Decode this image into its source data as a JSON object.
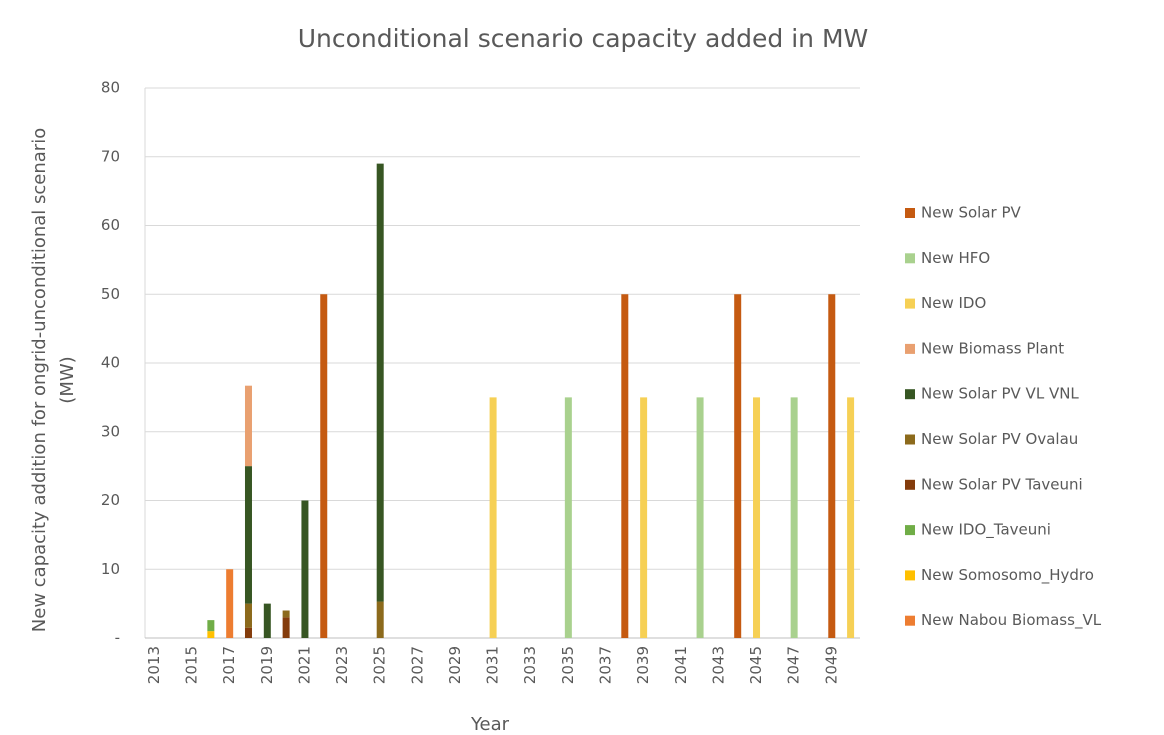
{
  "chart_data": {
    "type": "stacked_bar",
    "title": "Unconditional scenario capacity added in MW",
    "x_label": "Year",
    "y_label": [
      "New capacity addition for ongrid-unconditional scenario",
      "(MW)"
    ],
    "categories": [
      "2013",
      null,
      "2015",
      null,
      "2017",
      null,
      "2019",
      null,
      "2021",
      null,
      "2023",
      null,
      "2025",
      null,
      "2027",
      null,
      "2029",
      null,
      "2031",
      null,
      "2033",
      null,
      "2035",
      null,
      "2037",
      null,
      "2039",
      null,
      "2041",
      null,
      "2043",
      null,
      "2045",
      null,
      "2047",
      null,
      "2049",
      null
    ],
    "ylim": [
      0,
      80
    ],
    "yticks": [
      {
        "value": 0,
        "label": "-"
      },
      10,
      20,
      30,
      40,
      50,
      60,
      70,
      80
    ],
    "grid": true,
    "legend": "right",
    "series": [
      {
        "name": "New Solar PV",
        "color": "#c55a11",
        "values": [
          null,
          null,
          null,
          null,
          null,
          null,
          null,
          null,
          null,
          50,
          null,
          null,
          null,
          null,
          null,
          null,
          null,
          null,
          null,
          null,
          null,
          null,
          null,
          null,
          null,
          50,
          null,
          null,
          null,
          null,
          null,
          50,
          null,
          null,
          null,
          null,
          50,
          null
        ]
      },
      {
        "name": "New HFO",
        "color": "#a9d18e",
        "values": [
          null,
          null,
          null,
          null,
          null,
          null,
          null,
          null,
          null,
          null,
          null,
          null,
          null,
          null,
          null,
          null,
          null,
          null,
          null,
          null,
          null,
          null,
          35,
          null,
          null,
          null,
          null,
          null,
          null,
          35,
          null,
          null,
          null,
          null,
          35,
          null,
          null,
          null
        ]
      },
      {
        "name": "New IDO",
        "color": "#f6d055",
        "values": [
          null,
          null,
          null,
          null,
          null,
          null,
          null,
          null,
          null,
          null,
          null,
          null,
          null,
          null,
          null,
          null,
          null,
          null,
          35,
          null,
          null,
          null,
          null,
          null,
          null,
          null,
          35,
          null,
          null,
          null,
          null,
          null,
          35,
          null,
          null,
          null,
          null,
          35
        ]
      },
      {
        "name": "New Biomass Plant",
        "color": "#e9a070",
        "values": [
          null,
          null,
          null,
          null,
          null,
          11.7,
          null,
          null,
          null,
          null,
          null,
          null,
          null,
          null,
          null,
          null,
          null,
          null,
          null,
          null,
          null,
          null,
          null,
          null,
          null,
          null,
          null,
          null,
          null,
          null,
          null,
          null,
          null,
          null,
          null,
          null,
          null,
          null
        ]
      },
      {
        "name": "New Solar PV VL VNL",
        "color": "#375623",
        "values": [
          null,
          null,
          null,
          null,
          null,
          20,
          5,
          null,
          20,
          null,
          null,
          null,
          63.7,
          null,
          null,
          null,
          null,
          null,
          null,
          null,
          null,
          null,
          null,
          null,
          null,
          null,
          null,
          null,
          null,
          null,
          null,
          null,
          null,
          null,
          null,
          null,
          null,
          null
        ]
      },
      {
        "name": "New Solar PV Ovalau",
        "color": "#8c6a1c",
        "values": [
          null,
          null,
          null,
          null,
          null,
          3.5,
          null,
          1,
          null,
          null,
          null,
          null,
          5.3,
          null,
          null,
          null,
          null,
          null,
          null,
          null,
          null,
          null,
          null,
          null,
          null,
          null,
          null,
          null,
          null,
          null,
          null,
          null,
          null,
          null,
          null,
          null,
          null,
          null
        ]
      },
      {
        "name": "New Solar PV Taveuni",
        "color": "#843c0c",
        "values": [
          null,
          null,
          null,
          null,
          null,
          1.5,
          null,
          3,
          null,
          null,
          null,
          null,
          null,
          null,
          null,
          null,
          null,
          null,
          null,
          null,
          null,
          null,
          null,
          null,
          null,
          null,
          null,
          null,
          null,
          null,
          null,
          null,
          null,
          null,
          null,
          null,
          null,
          null
        ]
      },
      {
        "name": "New IDO_Taveuni",
        "color": "#70ad47",
        "values": [
          null,
          null,
          null,
          1.6,
          null,
          null,
          null,
          null,
          null,
          null,
          null,
          null,
          null,
          null,
          null,
          null,
          null,
          null,
          null,
          null,
          null,
          null,
          null,
          null,
          null,
          null,
          null,
          null,
          null,
          null,
          null,
          null,
          null,
          null,
          null,
          null,
          null,
          null
        ]
      },
      {
        "name": "New Somosomo_Hydro",
        "color": "#ffc000",
        "values": [
          null,
          null,
          null,
          1,
          null,
          null,
          null,
          null,
          null,
          null,
          null,
          null,
          null,
          null,
          null,
          null,
          null,
          null,
          null,
          null,
          null,
          null,
          null,
          null,
          null,
          null,
          null,
          null,
          null,
          null,
          null,
          null,
          null,
          null,
          null,
          null,
          null,
          null
        ]
      },
      {
        "name": "New Nabou Biomass_VL",
        "color": "#ed7d31",
        "values": [
          null,
          null,
          null,
          null,
          10,
          null,
          null,
          null,
          null,
          null,
          null,
          null,
          null,
          null,
          null,
          null,
          null,
          null,
          null,
          null,
          null,
          null,
          null,
          null,
          null,
          null,
          null,
          null,
          null,
          null,
          null,
          null,
          null,
          null,
          null,
          null,
          null,
          null
        ]
      }
    ]
  }
}
